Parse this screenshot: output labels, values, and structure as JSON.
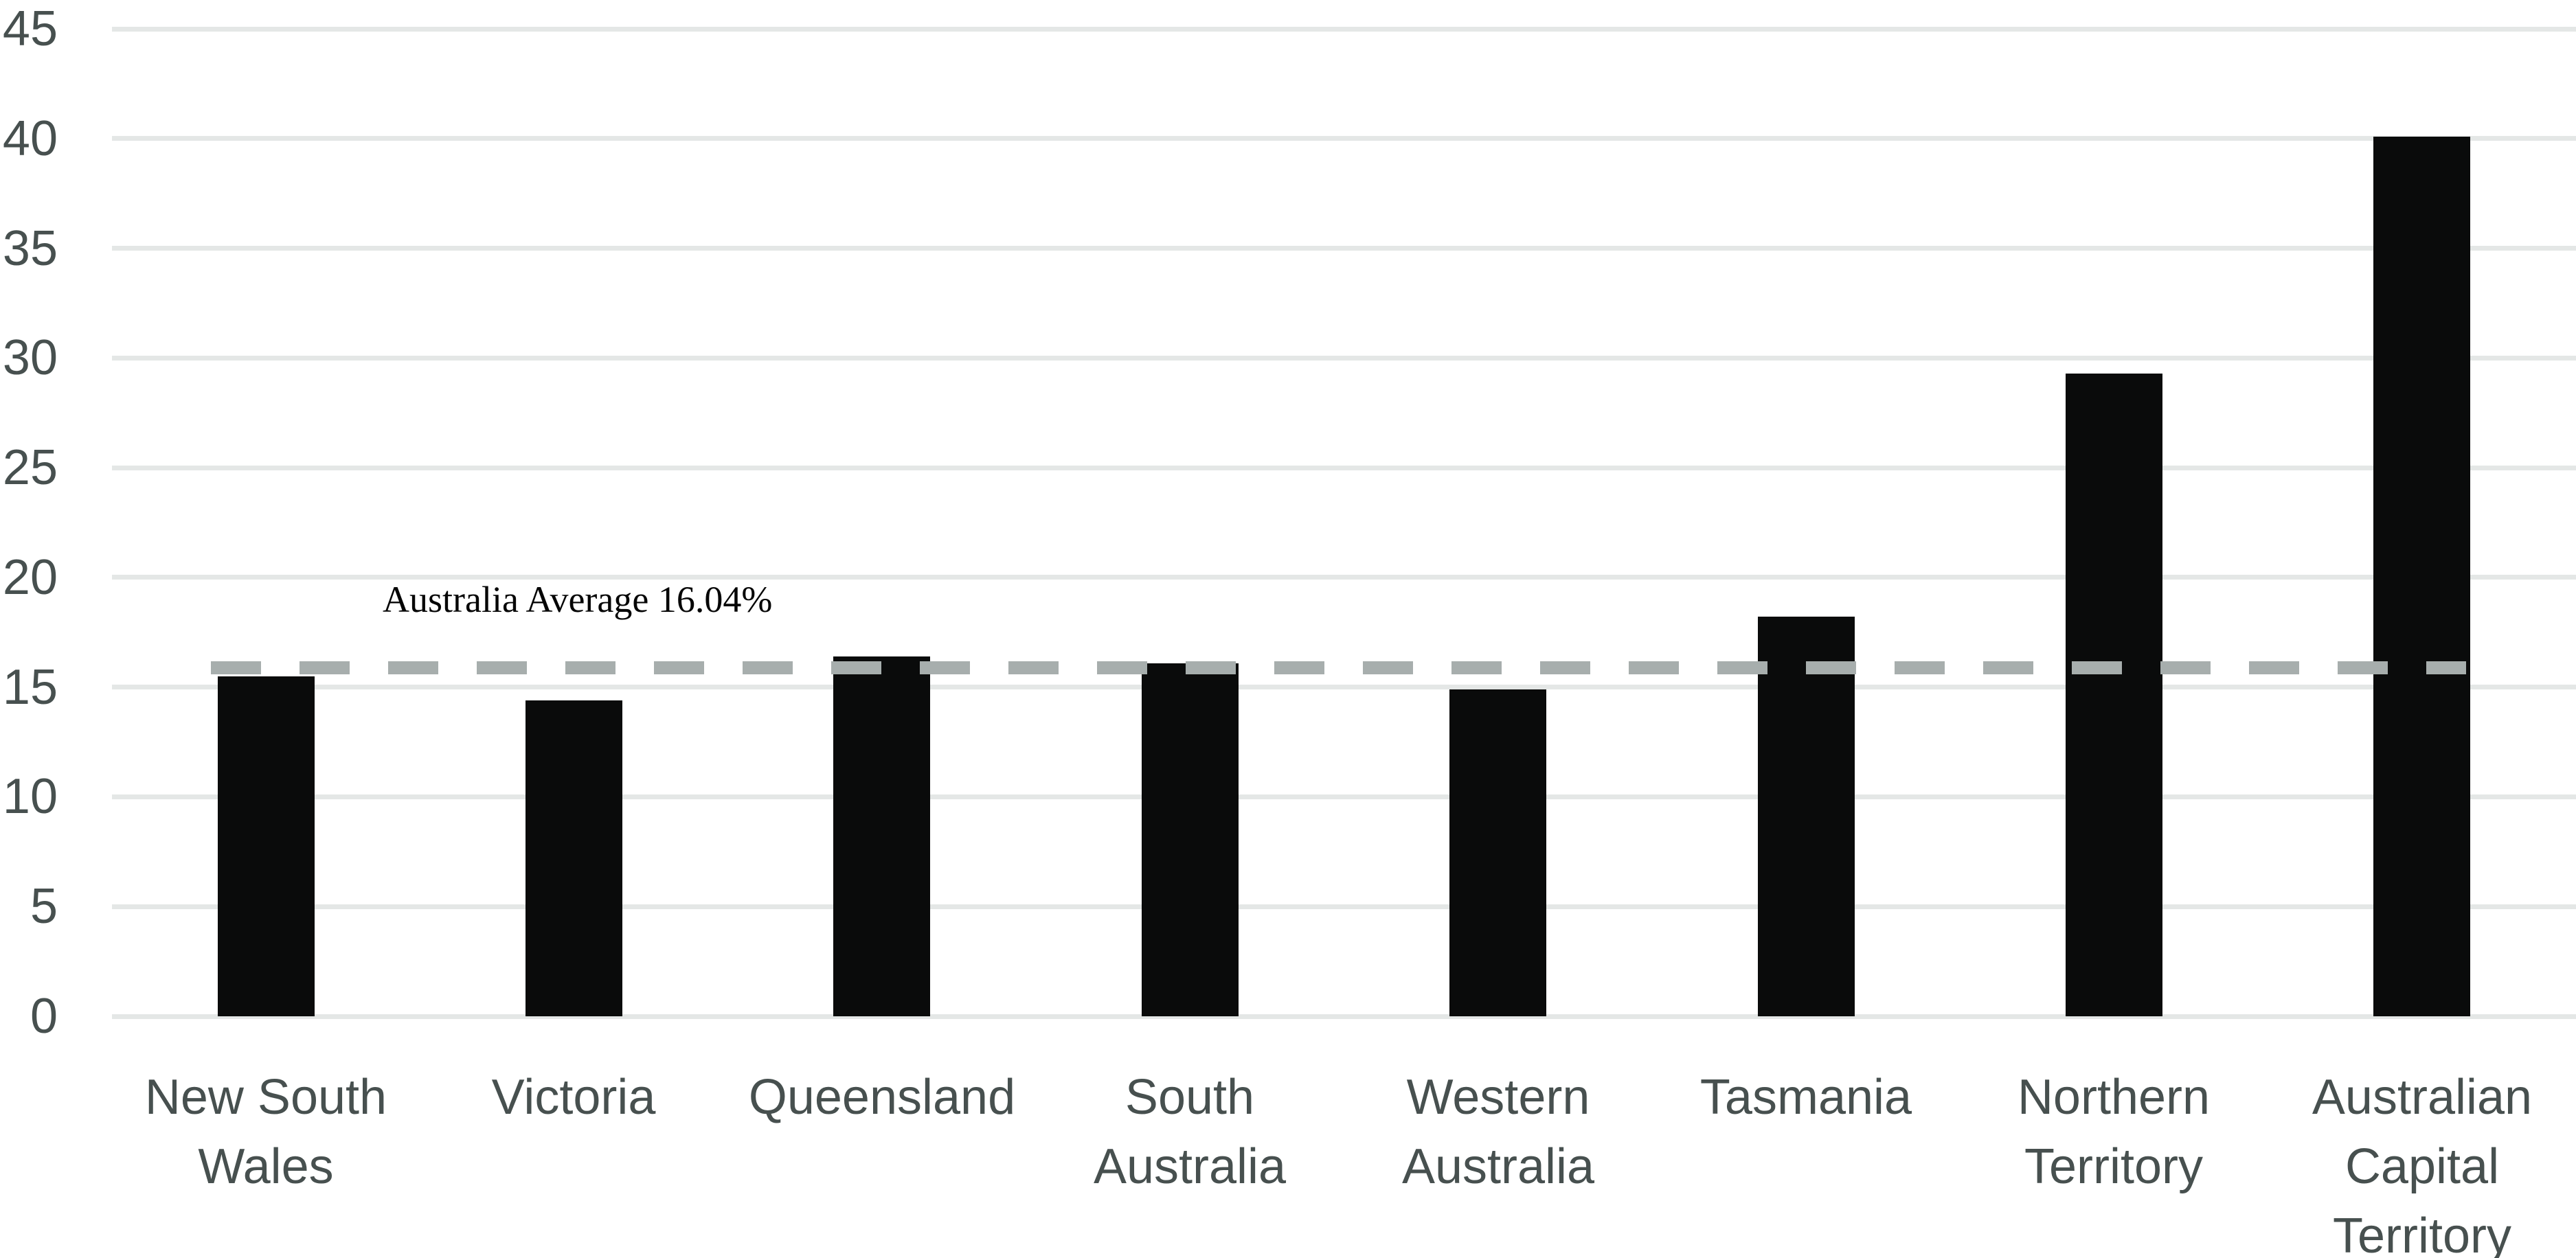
{
  "chart_data": {
    "type": "bar",
    "title": "",
    "xlabel": "",
    "ylabel": "",
    "categories": [
      "New South Wales",
      "Victoria",
      "Queensland",
      "South Australia",
      "Western Australia",
      "Tasmania",
      "Northern Territory",
      "Australian Capital Territory"
    ],
    "values": [
      15.5,
      14.4,
      16.4,
      16.1,
      14.9,
      18.2,
      29.3,
      40.1
    ],
    "ylim": [
      0,
      45
    ],
    "yticks": [
      0,
      5,
      10,
      15,
      20,
      25,
      30,
      35,
      40,
      45
    ],
    "grid": true,
    "legend": "none",
    "average_line": {
      "value": 16.04,
      "label": "Australia Average 16.04%"
    },
    "colors": {
      "bar": "#0a0b0b",
      "gridline": "#e4e7e6",
      "tick_text": "#47504f",
      "average_line": "#a7aead",
      "annotation_text": "#050505",
      "background": "#ffffff"
    }
  }
}
